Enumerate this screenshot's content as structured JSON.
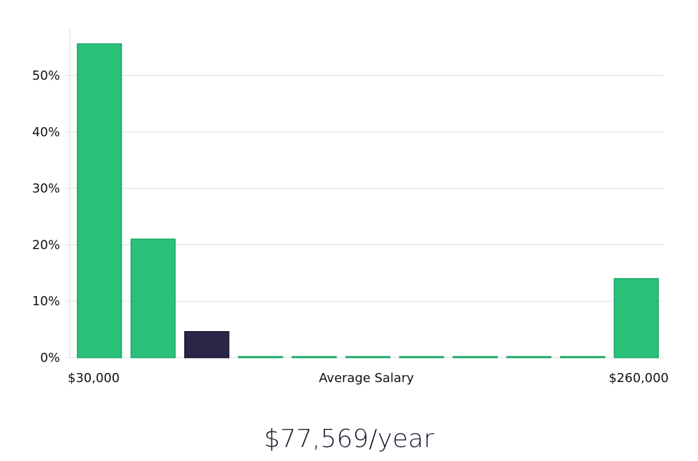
{
  "chart_data": {
    "type": "bar",
    "title": "",
    "xlabel": "Average Salary",
    "ylabel": "",
    "x_start_label": "$30,000",
    "x_end_label": "$260,000",
    "y_ticks": [
      "0%",
      "10%",
      "20%",
      "30%",
      "40%",
      "50%"
    ],
    "ylim": [
      0,
      58
    ],
    "grid": true,
    "values": [
      55.6,
      21.0,
      4.6,
      0,
      0,
      0,
      0,
      0,
      0,
      0,
      14.0
    ],
    "highlight_index": 2,
    "colors": {
      "bar": "#29c07a",
      "bar_edge": "#1fa866",
      "highlight": "#2a2648",
      "highlight_edge": "#16132c",
      "grid": "#dddddd"
    }
  },
  "summary": {
    "salary_text": "$77,569/year"
  }
}
